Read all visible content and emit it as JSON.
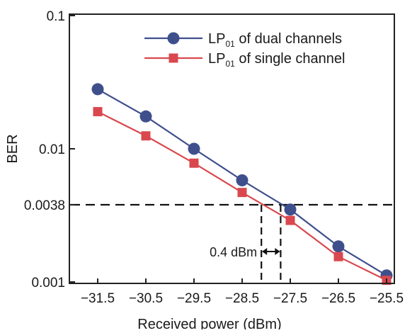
{
  "chart_data": {
    "type": "line",
    "title": "",
    "xlabel": "Received power (dBm)",
    "ylabel": "BER",
    "y_scale": "log",
    "xlim": [
      -31.5,
      -25.5
    ],
    "ylim": [
      0.001,
      0.1
    ],
    "x_ticks": [
      -31.5,
      -30.5,
      -29.5,
      -28.5,
      -27.5,
      -26.5,
      -25.5
    ],
    "x_tick_labels": [
      "−31.5",
      "−30.5",
      "−29.5",
      "−28.5",
      "−27.5",
      "−26.5",
      "−25.5"
    ],
    "y_ticks": [
      0.001,
      0.0038,
      0.01,
      0.1
    ],
    "y_tick_labels": [
      "0.001",
      "0.0038",
      "0.01",
      "0.1"
    ],
    "legend_position": "top-right",
    "series": [
      {
        "name": "LP01 of dual channels",
        "legend_main": "LP",
        "legend_sub": "01",
        "legend_rest": " of dual channels",
        "marker": "circle",
        "color": "#3f4f8c",
        "x": [
          -31.5,
          -30.5,
          -29.5,
          -28.5,
          -27.5,
          -26.5,
          -25.5
        ],
        "y": [
          0.028,
          0.0175,
          0.01,
          0.0058,
          0.0035,
          0.00185,
          0.00112
        ]
      },
      {
        "name": "LP01 of single channel",
        "legend_main": "LP",
        "legend_sub": "01",
        "legend_rest": " of single channel",
        "marker": "square",
        "color": "#d9484e",
        "x": [
          -31.5,
          -30.5,
          -29.5,
          -28.5,
          -27.5,
          -26.5,
          -25.5
        ],
        "y": [
          0.019,
          0.0125,
          0.0078,
          0.0047,
          0.0029,
          0.00155,
          0.00103
        ]
      }
    ],
    "annotations": {
      "threshold_y": 0.0038,
      "vline_x": [
        -28.1,
        -27.7
      ],
      "gap_label": "0.4 dBm"
    }
  }
}
